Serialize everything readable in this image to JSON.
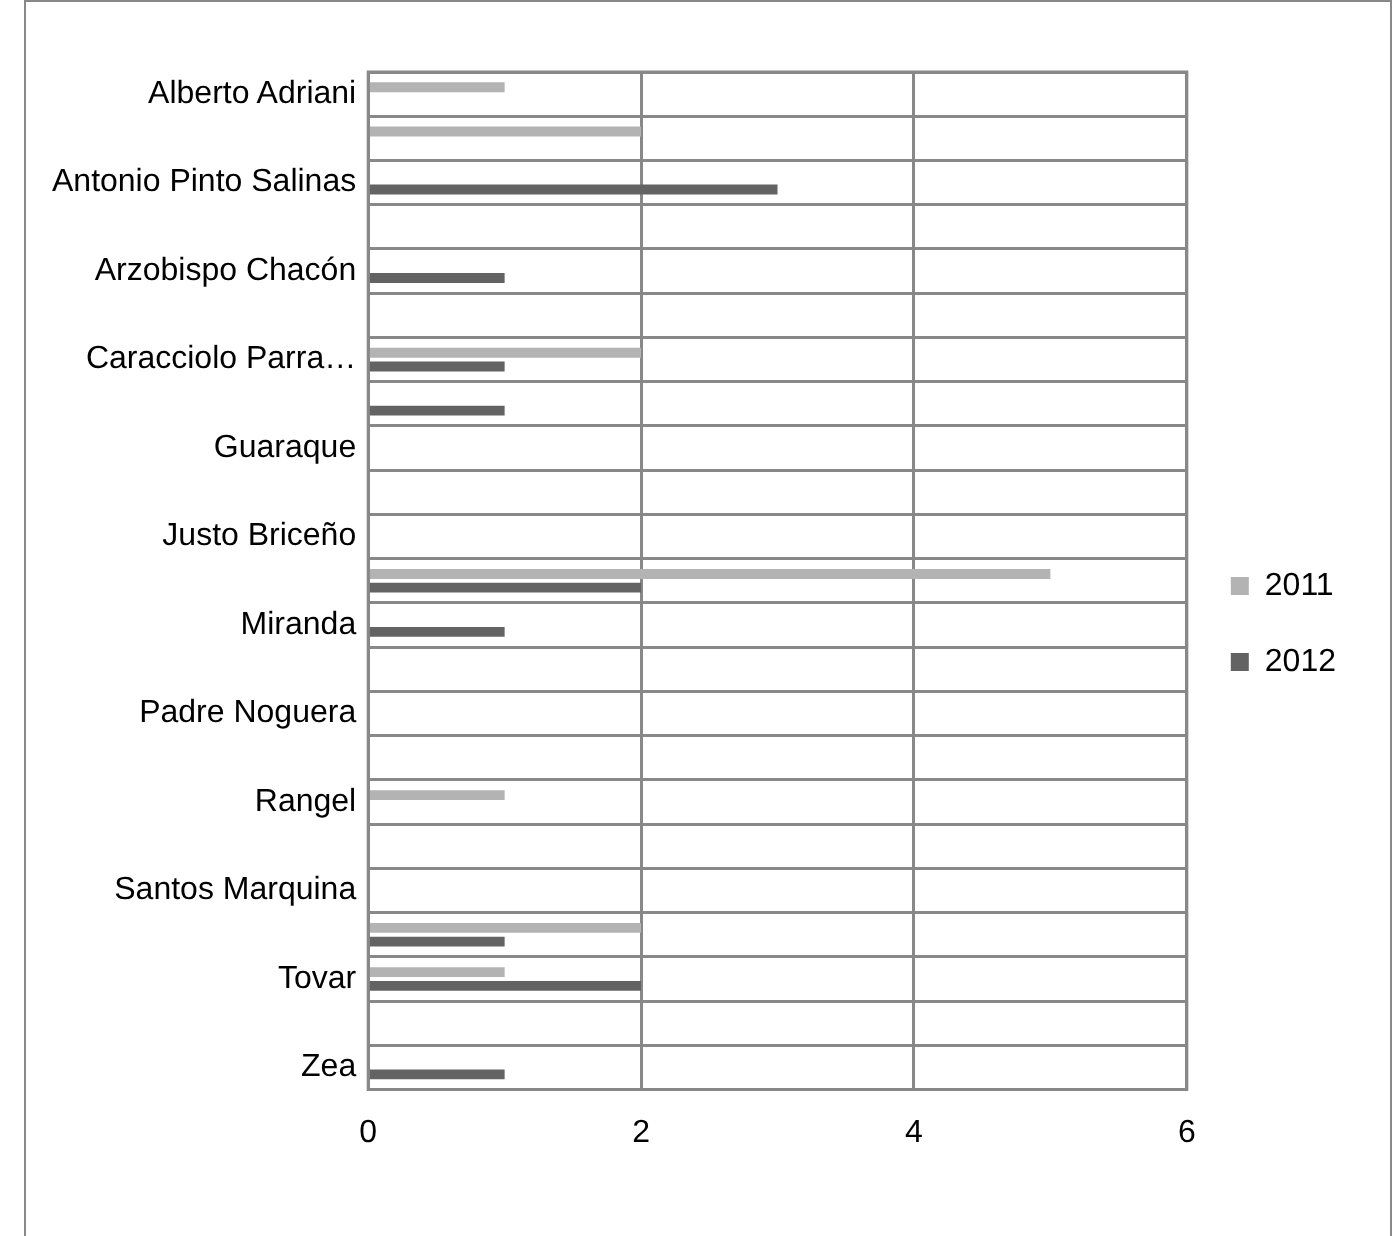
{
  "chart_data": {
    "type": "bar",
    "orientation": "horizontal",
    "categories": [
      "Alberto Adriani",
      null,
      "Antonio Pinto Salinas",
      null,
      "Arzobispo Chacón",
      null,
      "Caracciolo Parra…",
      null,
      "Guaraque",
      null,
      "Justo Briceño",
      null,
      "Miranda",
      null,
      "Padre Noguera",
      null,
      "Rangel",
      null,
      "Santos Marquina",
      null,
      "Tovar",
      null,
      "Zea"
    ],
    "series": [
      {
        "name": "2011",
        "color": "#b3b3b3",
        "values": [
          1,
          2,
          null,
          null,
          null,
          null,
          2,
          null,
          null,
          null,
          null,
          5,
          null,
          null,
          null,
          null,
          1,
          null,
          null,
          2,
          1,
          null,
          null
        ]
      },
      {
        "name": "2012",
        "color": "#636363",
        "values": [
          null,
          null,
          3,
          null,
          1,
          null,
          1,
          1,
          null,
          null,
          null,
          2,
          1,
          null,
          null,
          null,
          null,
          null,
          null,
          1,
          2,
          null,
          1
        ]
      }
    ],
    "xlim": [
      0,
      6
    ],
    "xticks": [
      0,
      2,
      4,
      6
    ],
    "grid": true,
    "legend": "right"
  }
}
